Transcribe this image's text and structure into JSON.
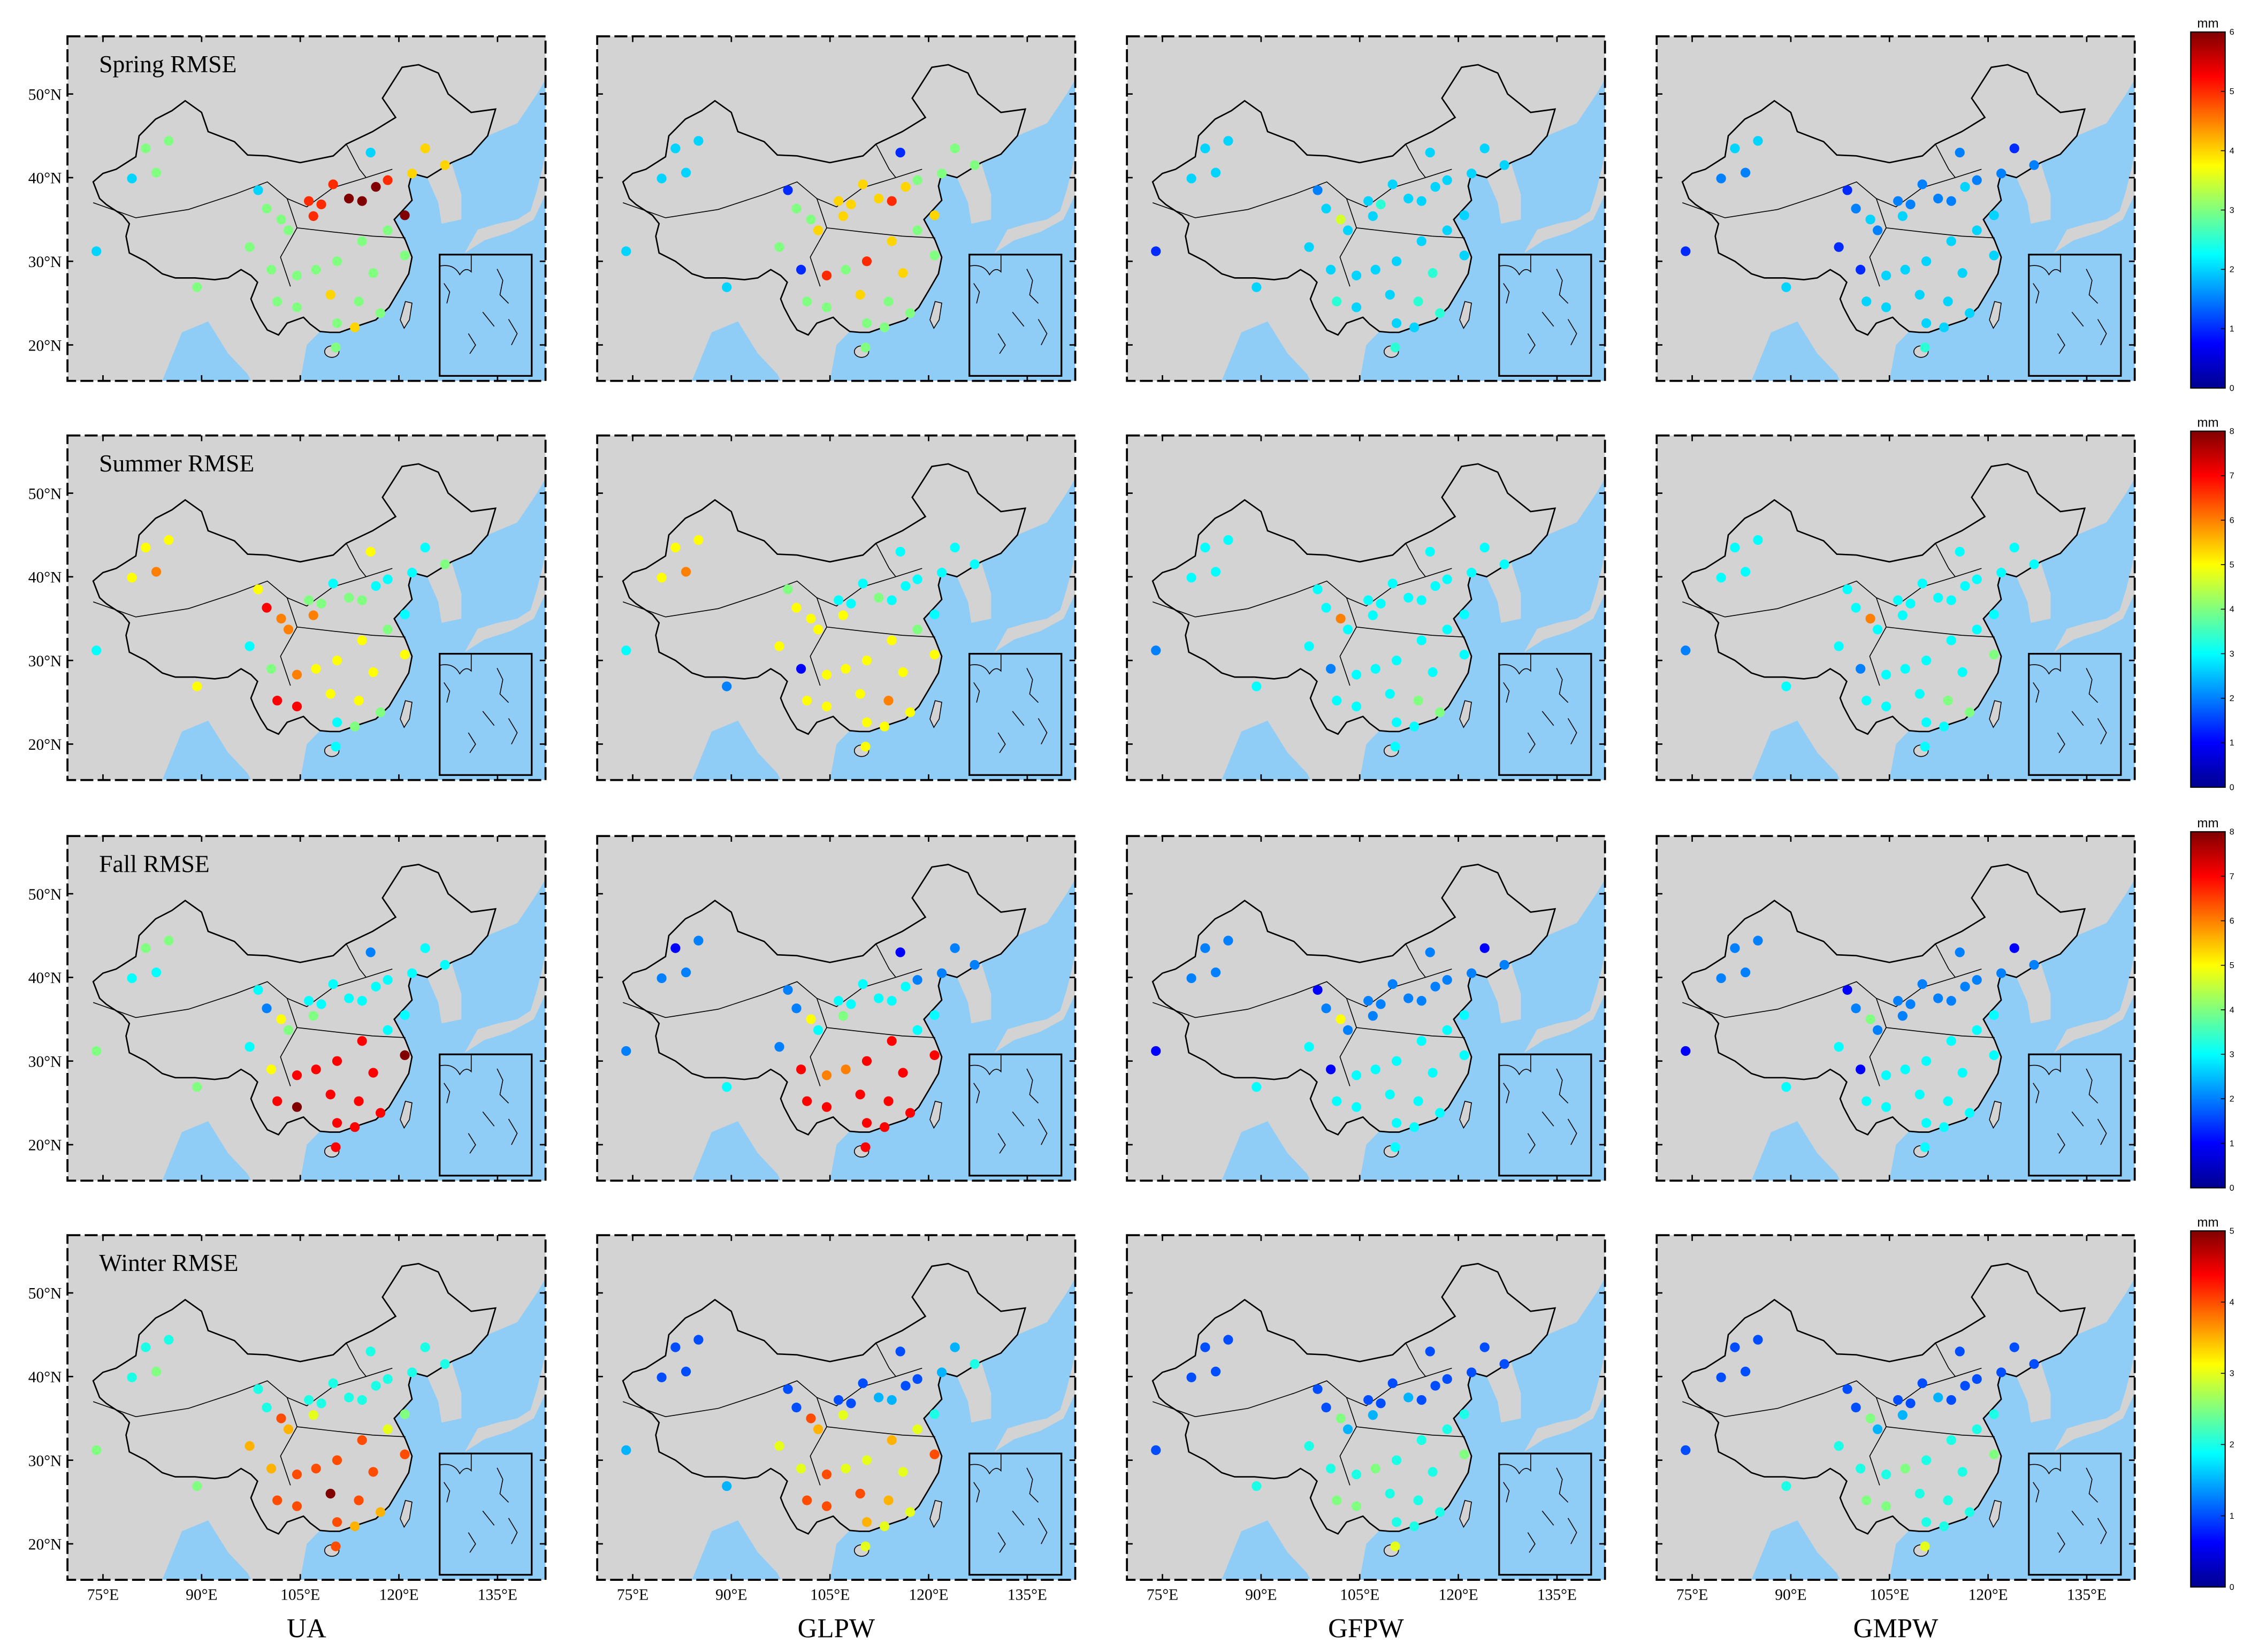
{
  "chart_data": {
    "type": "station-map-grid",
    "xlim": [
      69.6,
      142.3
    ],
    "ylim": [
      15.7,
      56.9
    ],
    "xticks": [
      {
        "value": 75,
        "label": "75°E"
      },
      {
        "value": 90,
        "label": "90°E"
      },
      {
        "value": 105,
        "label": "105°E"
      },
      {
        "value": 120,
        "label": "120°E"
      },
      {
        "value": 135,
        "label": "135°E"
      }
    ],
    "yticks": [
      {
        "value": 20,
        "label": "20°N"
      },
      {
        "value": 30,
        "label": "30°N"
      },
      {
        "value": 40,
        "label": "40°N"
      },
      {
        "value": 50,
        "label": "50°N"
      }
    ],
    "columns": [
      "UA",
      "GLPW",
      "GFPW",
      "GMPW"
    ],
    "stations": {
      "lon": [
        81.5,
        85.0,
        79.4,
        83.1,
        74.0,
        89.3,
        98.6,
        99.9,
        97.3,
        100.6,
        102.1,
        103.2,
        106.3,
        108.2,
        110.0,
        112.4,
        114.4,
        116.5,
        118.3,
        115.7,
        124.0,
        127.0,
        120.9,
        118.3,
        120.9,
        114.4,
        110.6,
        107.4,
        104.5,
        101.5,
        104.5,
        109.6,
        113.9,
        117.2,
        113.3,
        110.6,
        110.4,
        107.0,
        116.1,
        122.0
      ],
      "lat": [
        43.5,
        44.4,
        39.9,
        40.6,
        31.2,
        26.9,
        38.5,
        36.3,
        31.7,
        29.0,
        35.0,
        33.7,
        37.2,
        36.8,
        39.2,
        37.5,
        37.2,
        38.9,
        39.7,
        43.0,
        43.5,
        41.5,
        35.5,
        33.7,
        30.7,
        32.4,
        30.0,
        29.0,
        28.3,
        25.2,
        24.5,
        26.0,
        25.2,
        23.8,
        22.1,
        22.6,
        19.7,
        35.4,
        28.6,
        40.5
      ]
    },
    "rows": [
      {
        "title": "Spring RMSE",
        "colorbar": {
          "label": "mm",
          "lim": [
            0,
            6
          ],
          "ticks": [
            0,
            1,
            2,
            3,
            4,
            5,
            6
          ]
        },
        "values": [
          [
            3,
            3,
            2,
            3,
            2,
            3,
            2,
            3,
            3,
            3,
            3,
            3,
            5,
            5,
            5,
            6,
            6,
            6,
            5,
            2,
            4,
            4,
            6,
            3,
            3,
            3,
            3,
            3,
            3,
            3,
            3,
            4,
            3,
            3,
            4,
            3,
            3,
            5,
            3,
            4
          ],
          [
            2,
            2,
            2,
            2,
            2,
            2,
            1,
            3,
            3,
            1,
            3,
            4,
            4,
            4,
            4,
            4,
            5,
            4,
            3,
            1,
            3,
            3,
            4,
            3,
            3,
            4,
            5,
            3,
            5,
            3,
            3,
            4,
            3,
            3,
            3,
            3,
            3,
            4,
            4,
            3
          ],
          [
            2,
            2,
            2,
            2,
            1,
            2,
            1.5,
            2,
            2,
            2,
            3.5,
            2,
            2,
            2.5,
            2,
            2,
            2,
            2,
            2,
            2,
            2,
            2,
            2,
            2,
            2,
            2,
            2,
            2,
            2,
            2.5,
            2,
            2,
            2.5,
            2.5,
            2,
            2,
            2.5,
            2,
            2.5,
            2
          ],
          [
            2,
            2,
            1.5,
            1.5,
            1,
            2,
            1,
            1.5,
            1,
            1,
            2,
            1.5,
            1.5,
            1.5,
            1.5,
            1.5,
            1.5,
            2,
            1.5,
            1.5,
            1,
            1.5,
            2,
            2,
            2,
            2,
            2,
            2,
            2,
            2,
            2,
            2,
            2,
            2,
            2,
            2,
            2.5,
            2,
            2,
            1.5
          ]
        ]
      },
      {
        "title": "Summer RMSE",
        "colorbar": {
          "label": "mm",
          "lim": [
            0,
            8
          ],
          "ticks": [
            0,
            1,
            2,
            3,
            4,
            5,
            6,
            7,
            8
          ]
        },
        "values": [
          [
            5,
            5,
            5,
            6,
            3,
            5,
            5,
            7,
            3,
            4,
            6,
            6,
            4,
            4,
            3,
            4,
            4,
            3,
            3,
            5,
            3,
            4,
            3,
            4,
            5,
            5,
            5,
            5,
            6,
            7,
            7,
            5,
            5,
            4,
            4,
            3,
            3,
            6,
            5,
            3
          ],
          [
            5,
            5,
            5,
            6,
            3,
            2,
            4,
            5,
            5,
            1,
            5,
            5,
            3,
            3,
            3,
            4,
            3,
            3,
            3,
            3,
            3,
            3,
            3,
            4,
            5,
            5,
            5,
            5,
            5,
            5,
            5,
            5,
            6,
            5,
            5,
            5,
            5,
            5,
            5,
            3
          ],
          [
            3,
            3,
            3,
            3,
            2,
            3,
            3,
            3,
            3,
            2,
            6,
            3,
            3,
            3,
            3,
            3,
            3,
            3,
            3,
            3,
            3,
            3,
            3,
            3,
            3,
            3,
            3,
            3,
            3,
            3,
            3,
            3,
            4,
            4,
            3,
            3,
            3,
            3,
            3,
            3
          ],
          [
            3,
            3,
            3,
            3,
            2,
            3,
            3,
            3,
            3,
            2,
            6,
            3,
            3,
            3,
            3,
            3,
            3,
            3,
            3,
            3,
            3,
            3,
            3,
            3,
            4,
            3,
            3,
            3,
            3,
            3,
            3,
            3,
            4,
            4,
            3,
            3,
            3,
            3,
            3,
            3
          ]
        ]
      },
      {
        "title": "Fall RMSE",
        "colorbar": {
          "label": "mm",
          "lim": [
            0,
            8
          ],
          "ticks": [
            0,
            1,
            2,
            3,
            4,
            5,
            6,
            7,
            8
          ]
        },
        "values": [
          [
            4,
            4,
            3,
            3,
            4,
            4,
            3,
            2,
            3,
            5,
            5,
            4,
            3,
            3,
            3,
            3,
            3,
            3,
            3,
            2,
            3,
            3,
            3,
            3,
            8,
            7,
            7,
            7,
            7,
            7,
            8,
            7,
            7,
            7,
            7,
            7,
            7,
            4,
            7,
            3
          ],
          [
            1,
            2,
            2,
            2,
            2,
            3,
            2,
            2,
            2,
            7,
            5,
            3,
            3,
            3,
            3,
            3,
            3,
            3,
            2,
            1,
            2,
            2,
            3,
            3,
            7,
            7,
            7,
            6,
            6,
            7,
            7,
            7,
            7,
            7,
            7,
            7,
            7,
            4,
            7,
            2
          ],
          [
            2,
            2,
            2,
            2,
            1,
            3,
            1,
            2,
            3,
            1,
            5,
            2,
            2,
            2,
            2,
            2,
            2,
            2,
            2,
            2,
            1,
            2,
            3,
            3,
            3,
            3,
            3,
            3,
            3,
            3,
            3,
            3,
            3,
            3,
            3,
            3,
            3,
            2,
            3,
            2
          ],
          [
            2,
            2,
            2,
            2,
            1,
            3,
            1,
            2,
            3,
            1,
            4,
            2,
            2,
            2,
            2,
            2,
            2,
            2,
            2,
            2,
            1,
            2,
            3,
            3,
            3,
            3,
            3,
            3,
            3,
            3,
            3,
            3,
            3,
            3,
            3,
            3,
            3,
            2,
            3,
            2
          ]
        ]
      },
      {
        "title": "Winter RMSE",
        "colorbar": {
          "label": "mm",
          "lim": [
            0,
            5
          ],
          "ticks": [
            0,
            1,
            2,
            3,
            4,
            5
          ]
        },
        "values": [
          [
            2,
            2,
            2,
            2.5,
            2.5,
            2.5,
            2,
            2,
            3.5,
            3.5,
            4,
            3.5,
            2,
            2,
            2,
            2,
            2,
            2,
            2,
            2,
            2,
            2,
            2.5,
            3,
            4,
            4,
            4,
            4,
            4,
            4,
            4,
            5,
            4,
            3.5,
            3.5,
            4,
            4,
            3,
            4,
            2
          ],
          [
            1,
            1,
            1,
            1,
            1.5,
            1.5,
            1,
            1,
            3,
            3,
            4,
            3.5,
            1,
            1,
            1,
            1.5,
            1.5,
            1,
            1,
            1,
            1.5,
            2,
            2,
            3,
            4,
            3.5,
            3,
            3,
            4,
            4,
            4,
            4,
            3.5,
            3,
            3,
            3.5,
            3,
            3,
            3,
            1.5
          ],
          [
            1,
            1,
            1,
            1,
            1,
            2,
            1,
            1,
            2,
            2,
            2.5,
            1.5,
            1,
            1,
            1,
            1.5,
            1,
            1,
            1,
            1,
            1,
            1,
            2,
            2,
            2.5,
            2,
            2,
            2.5,
            2,
            2.5,
            2.5,
            2,
            2,
            2,
            2,
            2,
            3,
            1.5,
            2,
            1
          ],
          [
            1,
            1,
            1,
            1,
            1,
            2,
            1,
            1,
            2,
            2,
            2.5,
            1.5,
            1,
            1,
            1,
            1.5,
            1,
            1,
            1,
            1,
            1,
            1,
            2,
            2,
            2.5,
            2,
            2,
            2.5,
            2,
            2.5,
            2.5,
            2,
            2,
            2,
            2,
            2,
            3,
            1.5,
            2,
            1
          ]
        ]
      }
    ]
  }
}
